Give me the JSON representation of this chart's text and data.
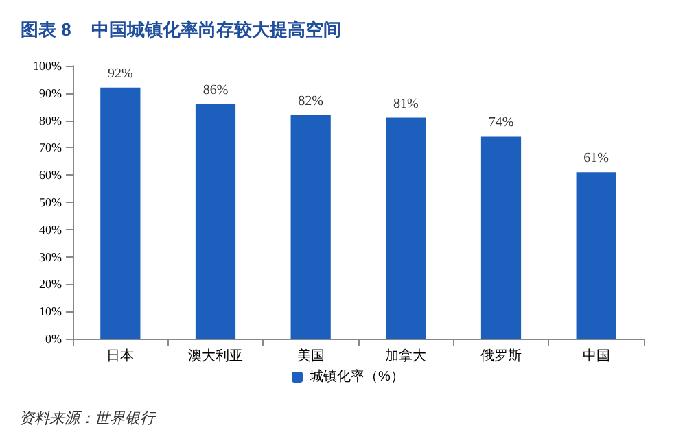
{
  "chart_data": {
    "type": "bar",
    "title": "图表 8    中国城镇化率尚存较大提高空间",
    "categories": [
      "日本",
      "澳大利亚",
      "美国",
      "加拿大",
      "俄罗斯",
      "中国"
    ],
    "series": [
      {
        "name": "城镇化率（%）",
        "color": "#1c5fbd",
        "values": [
          92,
          86,
          82,
          81,
          74,
          61
        ],
        "value_labels": [
          "92%",
          "86%",
          "82%",
          "81%",
          "74%",
          "61%"
        ]
      }
    ],
    "ylim": [
      0,
      100
    ],
    "yticks": [
      {
        "value": 0,
        "label": "0%"
      },
      {
        "value": 10,
        "label": "10%"
      },
      {
        "value": 20,
        "label": "20%"
      },
      {
        "value": 30,
        "label": "30%"
      },
      {
        "value": 40,
        "label": "40%"
      },
      {
        "value": 50,
        "label": "50%"
      },
      {
        "value": 60,
        "label": "60%"
      },
      {
        "value": 70,
        "label": "70%"
      },
      {
        "value": 80,
        "label": "80%"
      },
      {
        "value": 90,
        "label": "90%"
      },
      {
        "value": 100,
        "label": "100%"
      }
    ],
    "legend": "bottom",
    "grid": false,
    "annotations": [
      "资料来源：世界银行"
    ]
  }
}
